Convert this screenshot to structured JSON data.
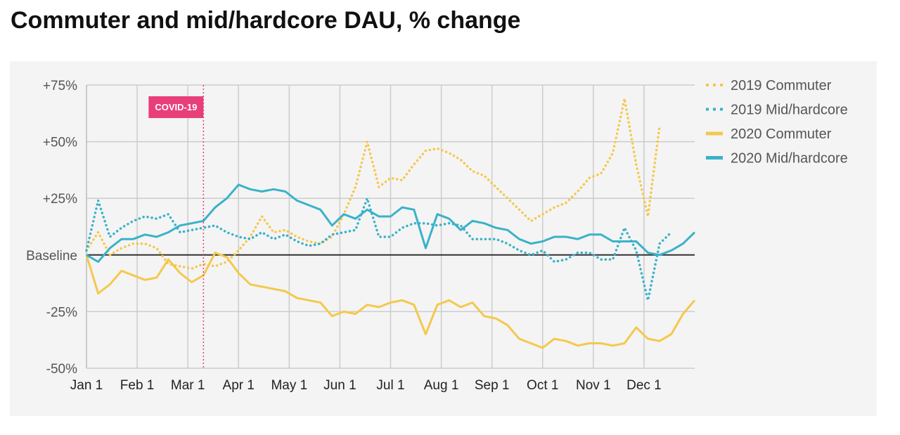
{
  "chart_data": {
    "type": "line",
    "title": "Commuter and mid/hardcore DAU, % change",
    "xlabel": "",
    "ylabel": "",
    "x_ticks": [
      "Jan 1",
      "Feb 1",
      "Mar 1",
      "Apr 1",
      "May 1",
      "Jun 1",
      "Jul 1",
      "Aug 1",
      "Sep 1",
      "Oct 1",
      "Nov 1",
      "Dec 1"
    ],
    "y_ticks": [
      {
        "value": 75,
        "label": "+75%"
      },
      {
        "value": 50,
        "label": "+50%"
      },
      {
        "value": 25,
        "label": "+25%"
      },
      {
        "value": 0,
        "label": "Baseline"
      },
      {
        "value": -25,
        "label": "-25%"
      },
      {
        "value": -50,
        "label": "-50%"
      }
    ],
    "ylim": [
      -50,
      75
    ],
    "xlim": [
      1,
      53
    ],
    "x_unit": "week",
    "grid": true,
    "legend_position": "right",
    "annotation": {
      "label": "COVID-19",
      "x": 11,
      "color": "#e83e7a"
    },
    "series": [
      {
        "name": "2019 Commuter",
        "style": "dotted",
        "color": "#f5c84c",
        "points": [
          [
            1,
            2
          ],
          [
            2,
            10
          ],
          [
            3,
            0
          ],
          [
            4,
            3
          ],
          [
            5,
            5
          ],
          [
            6,
            5
          ],
          [
            7,
            3
          ],
          [
            8,
            -4
          ],
          [
            9,
            -5
          ],
          [
            10,
            -6
          ],
          [
            11,
            -4
          ],
          [
            12,
            -5
          ],
          [
            13,
            -3
          ],
          [
            14,
            2
          ],
          [
            15,
            8
          ],
          [
            16,
            17
          ],
          [
            17,
            10
          ],
          [
            18,
            11
          ],
          [
            19,
            8
          ],
          [
            20,
            6
          ],
          [
            21,
            5
          ],
          [
            22,
            8
          ],
          [
            23,
            18
          ],
          [
            24,
            30
          ],
          [
            25,
            50
          ],
          [
            26,
            30
          ],
          [
            27,
            34
          ],
          [
            28,
            33
          ],
          [
            29,
            40
          ],
          [
            30,
            46
          ],
          [
            31,
            47
          ],
          [
            32,
            45
          ],
          [
            33,
            42
          ],
          [
            34,
            37
          ],
          [
            35,
            35
          ],
          [
            36,
            30
          ],
          [
            37,
            25
          ],
          [
            38,
            20
          ],
          [
            39,
            15
          ],
          [
            40,
            18
          ],
          [
            41,
            21
          ],
          [
            42,
            23
          ],
          [
            43,
            28
          ],
          [
            44,
            34
          ],
          [
            45,
            36
          ],
          [
            46,
            45
          ],
          [
            47,
            69
          ],
          [
            48,
            40
          ],
          [
            49,
            17
          ],
          [
            50,
            57
          ]
        ]
      },
      {
        "name": "2019 Mid/hardcore",
        "style": "dotted",
        "color": "#3ab2c9",
        "points": [
          [
            1,
            2
          ],
          [
            2,
            24
          ],
          [
            3,
            8
          ],
          [
            4,
            12
          ],
          [
            5,
            15
          ],
          [
            6,
            17
          ],
          [
            7,
            16
          ],
          [
            8,
            18
          ],
          [
            9,
            10
          ],
          [
            10,
            11
          ],
          [
            11,
            12
          ],
          [
            12,
            13
          ],
          [
            13,
            10
          ],
          [
            14,
            8
          ],
          [
            15,
            7
          ],
          [
            16,
            10
          ],
          [
            17,
            7
          ],
          [
            18,
            9
          ],
          [
            19,
            6
          ],
          [
            20,
            4
          ],
          [
            21,
            5
          ],
          [
            22,
            9
          ],
          [
            23,
            10
          ],
          [
            24,
            11
          ],
          [
            25,
            25
          ],
          [
            26,
            8
          ],
          [
            27,
            8
          ],
          [
            28,
            12
          ],
          [
            29,
            14
          ],
          [
            30,
            14
          ],
          [
            31,
            13
          ],
          [
            32,
            14
          ],
          [
            33,
            13
          ],
          [
            34,
            7
          ],
          [
            35,
            7
          ],
          [
            36,
            7
          ],
          [
            37,
            5
          ],
          [
            38,
            2
          ],
          [
            39,
            0
          ],
          [
            40,
            2
          ],
          [
            41,
            -3
          ],
          [
            42,
            -2
          ],
          [
            43,
            1
          ],
          [
            44,
            1
          ],
          [
            45,
            -2
          ],
          [
            46,
            -2
          ],
          [
            47,
            12
          ],
          [
            48,
            2
          ],
          [
            49,
            -20
          ],
          [
            50,
            5
          ],
          [
            51,
            10
          ]
        ]
      },
      {
        "name": "2020 Commuter",
        "style": "solid",
        "color": "#f5c84c",
        "points": [
          [
            1,
            0
          ],
          [
            2,
            -17
          ],
          [
            3,
            -13
          ],
          [
            4,
            -7
          ],
          [
            5,
            -9
          ],
          [
            6,
            -11
          ],
          [
            7,
            -10
          ],
          [
            8,
            -2
          ],
          [
            9,
            -8
          ],
          [
            10,
            -12
          ],
          [
            11,
            -9
          ],
          [
            12,
            1
          ],
          [
            13,
            -1
          ],
          [
            14,
            -8
          ],
          [
            15,
            -13
          ],
          [
            16,
            -14
          ],
          [
            17,
            -15
          ],
          [
            18,
            -16
          ],
          [
            19,
            -19
          ],
          [
            20,
            -20
          ],
          [
            21,
            -21
          ],
          [
            22,
            -27
          ],
          [
            23,
            -25
          ],
          [
            24,
            -26
          ],
          [
            25,
            -22
          ],
          [
            26,
            -23
          ],
          [
            27,
            -21
          ],
          [
            28,
            -20
          ],
          [
            29,
            -22
          ],
          [
            30,
            -35
          ],
          [
            31,
            -22
          ],
          [
            32,
            -20
          ],
          [
            33,
            -23
          ],
          [
            34,
            -21
          ],
          [
            35,
            -27
          ],
          [
            36,
            -28
          ],
          [
            37,
            -31
          ],
          [
            38,
            -37
          ],
          [
            39,
            -39
          ],
          [
            40,
            -41
          ],
          [
            41,
            -37
          ],
          [
            42,
            -38
          ],
          [
            43,
            -40
          ],
          [
            44,
            -39
          ],
          [
            45,
            -39
          ],
          [
            46,
            -40
          ],
          [
            47,
            -39
          ],
          [
            48,
            -32
          ],
          [
            49,
            -37
          ],
          [
            50,
            -38
          ],
          [
            51,
            -35
          ],
          [
            52,
            -26
          ],
          [
            53,
            -20
          ]
        ]
      },
      {
        "name": "2020 Mid/hardcore",
        "style": "solid",
        "color": "#3ab2c9",
        "points": [
          [
            1,
            0
          ],
          [
            2,
            -3
          ],
          [
            3,
            3
          ],
          [
            4,
            7
          ],
          [
            5,
            7
          ],
          [
            6,
            9
          ],
          [
            7,
            8
          ],
          [
            8,
            10
          ],
          [
            9,
            13
          ],
          [
            10,
            14
          ],
          [
            11,
            15
          ],
          [
            12,
            21
          ],
          [
            13,
            25
          ],
          [
            14,
            31
          ],
          [
            15,
            29
          ],
          [
            16,
            28
          ],
          [
            17,
            29
          ],
          [
            18,
            28
          ],
          [
            19,
            24
          ],
          [
            20,
            22
          ],
          [
            21,
            20
          ],
          [
            22,
            13
          ],
          [
            23,
            18
          ],
          [
            24,
            16
          ],
          [
            25,
            20
          ],
          [
            26,
            17
          ],
          [
            27,
            17
          ],
          [
            28,
            21
          ],
          [
            29,
            20
          ],
          [
            30,
            3
          ],
          [
            31,
            18
          ],
          [
            32,
            16
          ],
          [
            33,
            11
          ],
          [
            34,
            15
          ],
          [
            35,
            14
          ],
          [
            36,
            12
          ],
          [
            37,
            11
          ],
          [
            38,
            7
          ],
          [
            39,
            5
          ],
          [
            40,
            6
          ],
          [
            41,
            8
          ],
          [
            42,
            8
          ],
          [
            43,
            7
          ],
          [
            44,
            9
          ],
          [
            45,
            9
          ],
          [
            46,
            6
          ],
          [
            47,
            6
          ],
          [
            48,
            6
          ],
          [
            49,
            1
          ],
          [
            50,
            0
          ],
          [
            51,
            2
          ],
          [
            52,
            5
          ],
          [
            53,
            10
          ]
        ]
      }
    ]
  }
}
